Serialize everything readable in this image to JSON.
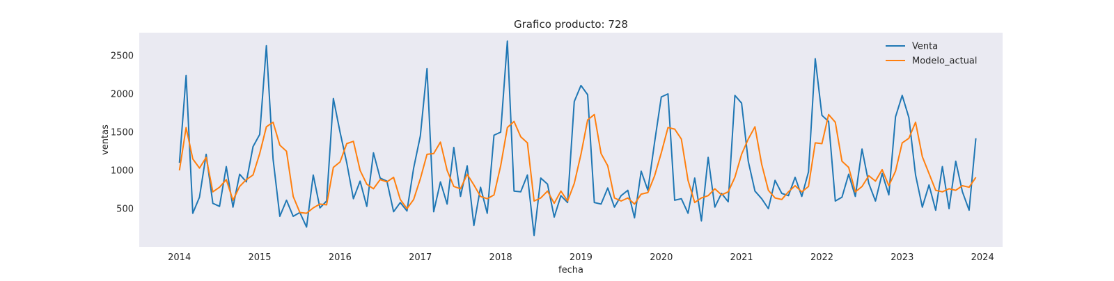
{
  "chart_data": {
    "type": "line",
    "title": "Grafico producto: 728",
    "xlabel": "fecha",
    "ylabel": "ventas",
    "x_ticks": [
      "2014",
      "2015",
      "2016",
      "2017",
      "2018",
      "2019",
      "2020",
      "2021",
      "2022",
      "2023",
      "2024"
    ],
    "y_ticks": [
      500,
      1000,
      1500,
      2000,
      2500
    ],
    "xlim": [
      "2013-07",
      "2024-04"
    ],
    "ylim": [
      0,
      2800
    ],
    "grid": false,
    "legend": "top-right",
    "background": "#eaeaf2",
    "x_start": "2014-01",
    "x_frequency": "monthly",
    "series": [
      {
        "name": "Venta",
        "color": "#1f77b4",
        "values": [
          1100,
          2240,
          440,
          650,
          1210,
          570,
          530,
          1050,
          520,
          950,
          850,
          1310,
          1470,
          2630,
          1150,
          400,
          610,
          400,
          450,
          260,
          940,
          510,
          600,
          1940,
          1500,
          1100,
          630,
          860,
          530,
          1230,
          900,
          860,
          460,
          580,
          470,
          1030,
          1450,
          2330,
          460,
          850,
          560,
          1300,
          660,
          1060,
          280,
          780,
          440,
          1460,
          1500,
          2690,
          730,
          720,
          940,
          150,
          900,
          820,
          390,
          670,
          580,
          1900,
          2110,
          1990,
          580,
          560,
          770,
          520,
          670,
          740,
          380,
          990,
          740,
          1370,
          1960,
          2000,
          610,
          630,
          440,
          900,
          340,
          1170,
          520,
          700,
          590,
          1980,
          1880,
          1120,
          730,
          630,
          500,
          870,
          700,
          670,
          910,
          660,
          980,
          2460,
          1720,
          1640,
          600,
          650,
          950,
          660,
          1280,
          830,
          600,
          960,
          680,
          1700,
          1980,
          1690,
          940,
          520,
          810,
          480,
          1050,
          500,
          1120,
          720,
          480,
          1420
        ]
      },
      {
        "name": "Modelo_actual",
        "color": "#ff7f0e",
        "values": [
          1000,
          1560,
          1150,
          1030,
          1170,
          720,
          780,
          880,
          610,
          790,
          880,
          940,
          1220,
          1570,
          1630,
          1330,
          1250,
          660,
          450,
          440,
          510,
          560,
          550,
          1040,
          1110,
          1350,
          1380,
          1000,
          820,
          760,
          880,
          850,
          910,
          620,
          500,
          620,
          890,
          1210,
          1220,
          1370,
          1000,
          790,
          760,
          950,
          810,
          660,
          630,
          680,
          1060,
          1560,
          1640,
          1440,
          1360,
          600,
          640,
          730,
          570,
          730,
          600,
          830,
          1210,
          1660,
          1730,
          1220,
          1060,
          640,
          600,
          640,
          560,
          690,
          710,
          930,
          1230,
          1560,
          1540,
          1410,
          870,
          580,
          640,
          670,
          760,
          680,
          720,
          910,
          1210,
          1410,
          1570,
          1080,
          740,
          640,
          620,
          720,
          800,
          720,
          790,
          1360,
          1350,
          1730,
          1630,
          1120,
          1040,
          720,
          790,
          930,
          860,
          1010,
          800,
          990,
          1360,
          1420,
          1630,
          1180,
          960,
          740,
          720,
          760,
          740,
          800,
          780,
          910
        ]
      }
    ]
  }
}
